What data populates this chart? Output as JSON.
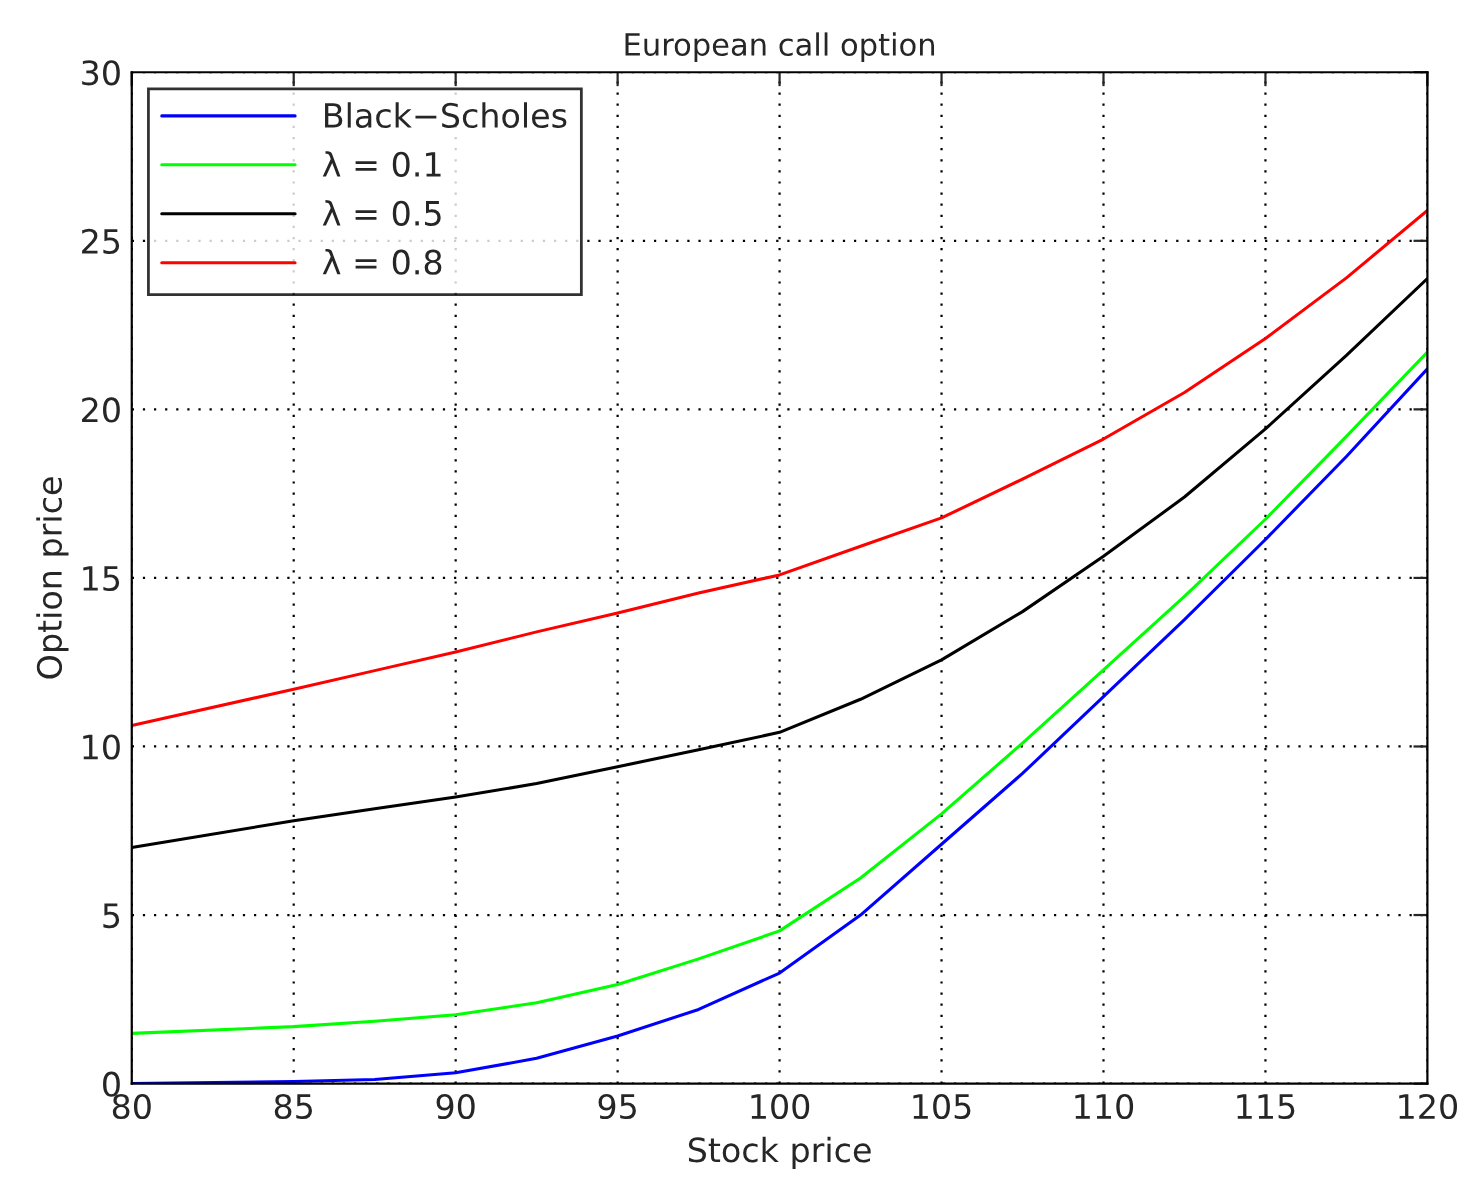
{
  "chart_data": {
    "type": "line",
    "title": "European call option",
    "xlabel": "Stock price",
    "ylabel": "Option price",
    "x": [
      80,
      85,
      87.5,
      90,
      92.5,
      95,
      97.5,
      100,
      102.5,
      105,
      107.5,
      110,
      112.5,
      115,
      117.5,
      120
    ],
    "series": [
      {
        "name": "Black−Scholes",
        "color": "#0000ff",
        "values": [
          0.0,
          0.06,
          0.12,
          0.32,
          0.75,
          1.41,
          2.2,
          3.28,
          5.0,
          7.1,
          9.2,
          11.48,
          13.76,
          16.14,
          18.6,
          21.2
        ]
      },
      {
        "name": "λ = 0.1",
        "color": "#00ff00",
        "values": [
          1.49,
          1.69,
          1.85,
          2.04,
          2.4,
          2.94,
          3.7,
          4.53,
          6.1,
          8.0,
          10.1,
          12.27,
          14.45,
          16.74,
          19.2,
          21.7
        ]
      },
      {
        "name": "λ = 0.5",
        "color": "#000000",
        "values": [
          7.0,
          7.8,
          8.15,
          8.5,
          8.9,
          9.4,
          9.9,
          10.42,
          11.4,
          12.57,
          14.0,
          15.64,
          17.4,
          19.42,
          21.6,
          23.88
        ]
      },
      {
        "name": "λ = 0.8",
        "color": "#ff0000",
        "values": [
          10.62,
          11.7,
          12.25,
          12.8,
          13.4,
          13.96,
          14.55,
          15.09,
          15.94,
          16.78,
          17.93,
          19.12,
          20.5,
          22.1,
          23.9,
          25.9
        ]
      }
    ],
    "xlim": [
      80,
      120
    ],
    "xticks": [
      80,
      85,
      90,
      95,
      100,
      105,
      110,
      115,
      120
    ],
    "ylim": [
      0,
      30
    ],
    "yticks": [
      0,
      5,
      10,
      15,
      20,
      25,
      30
    ],
    "grid": true,
    "legend": "top left",
    "line_style": "solid"
  }
}
